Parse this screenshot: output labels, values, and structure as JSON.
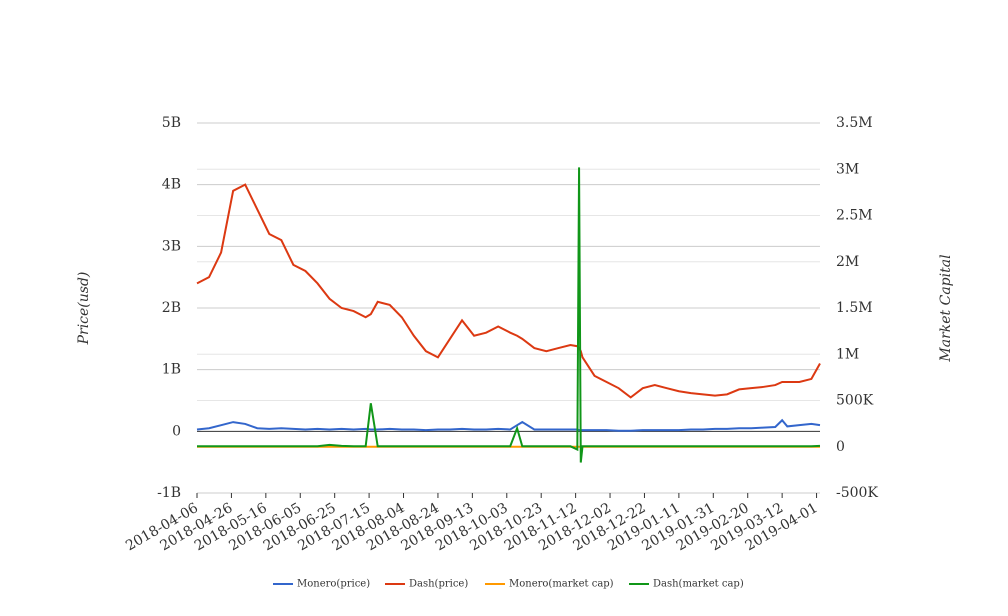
{
  "chart_data": {
    "type": "line",
    "y_label": "Price(usd)",
    "y2_label": "Market Capital",
    "x": [
      "2018-04-06",
      "2018-04-13",
      "2018-04-20",
      "2018-04-27",
      "2018-05-04",
      "2018-05-11",
      "2018-05-18",
      "2018-05-25",
      "2018-06-01",
      "2018-06-08",
      "2018-06-15",
      "2018-06-22",
      "2018-06-29",
      "2018-07-06",
      "2018-07-13",
      "2018-07-16",
      "2018-07-20",
      "2018-07-27",
      "2018-08-03",
      "2018-08-10",
      "2018-08-17",
      "2018-08-24",
      "2018-08-31",
      "2018-09-07",
      "2018-09-14",
      "2018-09-21",
      "2018-09-28",
      "2018-10-05",
      "2018-10-09",
      "2018-10-12",
      "2018-10-19",
      "2018-10-26",
      "2018-11-02",
      "2018-11-09",
      "2018-11-13",
      "2018-11-14",
      "2018-11-15",
      "2018-11-16",
      "2018-11-23",
      "2018-11-30",
      "2018-12-07",
      "2018-12-14",
      "2018-12-21",
      "2018-12-28",
      "2019-01-04",
      "2019-01-11",
      "2019-01-18",
      "2019-01-25",
      "2019-02-01",
      "2019-02-08",
      "2019-02-15",
      "2019-02-22",
      "2019-03-01",
      "2019-03-08",
      "2019-03-12",
      "2019-03-15",
      "2019-03-22",
      "2019-03-29",
      "2019-04-03"
    ],
    "xlim": [
      "2018-04-06",
      "2019-04-03"
    ],
    "xticks": [
      "2018-04-06",
      "2018-04-26",
      "2018-05-16",
      "2018-06-05",
      "2018-06-25",
      "2018-07-15",
      "2018-08-04",
      "2018-08-24",
      "2018-09-13",
      "2018-10-03",
      "2018-10-23",
      "2018-11-12",
      "2018-12-02",
      "2018-12-22",
      "2019-01-11",
      "2019-01-31",
      "2019-02-20",
      "2019-03-12",
      "2019-04-01"
    ],
    "ylim": [
      -1000000000.0,
      5000000000.0
    ],
    "yticks": [
      {
        "value": -1000000000.0,
        "label": "-1B"
      },
      0,
      {
        "value": 1000000000.0,
        "label": "1B"
      },
      {
        "value": 2000000000.0,
        "label": "2B"
      },
      {
        "value": 3000000000.0,
        "label": "3B"
      },
      {
        "value": 4000000000.0,
        "label": "4B"
      },
      {
        "value": 5000000000.0,
        "label": "5B"
      }
    ],
    "y2lim": [
      -500000,
      3500000
    ],
    "y2ticks": [
      {
        "value": -500000,
        "label": "-500K"
      },
      0,
      {
        "value": 500000,
        "label": "500K"
      },
      {
        "value": 1000000,
        "label": "1M"
      },
      {
        "value": 1500000,
        "label": "1.5M"
      },
      {
        "value": 2000000,
        "label": "2M"
      },
      {
        "value": 2500000,
        "label": "2.5M"
      },
      {
        "value": 3000000,
        "label": "3M"
      },
      {
        "value": 3500000,
        "label": "3.5M"
      }
    ],
    "grid": true,
    "legend": "bottom",
    "series": [
      {
        "name": "Monero(price)",
        "color": "#3366cc",
        "values": [
          30000000.0,
          50000000.0,
          100000000.0,
          150000000.0,
          120000000.0,
          50000000.0,
          40000000.0,
          50000000.0,
          40000000.0,
          30000000.0,
          40000000.0,
          30000000.0,
          40000000.0,
          30000000.0,
          40000000.0,
          30000000.0,
          30000000.0,
          40000000.0,
          30000000.0,
          30000000.0,
          20000000.0,
          30000000.0,
          30000000.0,
          40000000.0,
          30000000.0,
          30000000.0,
          40000000.0,
          30000000.0,
          100000000.0,
          150000000.0,
          30000000.0,
          30000000.0,
          30000000.0,
          30000000.0,
          30000000.0,
          20000000.0,
          20000000.0,
          20000000.0,
          20000000.0,
          20000000.0,
          10000000.0,
          10000000.0,
          20000000.0,
          20000000.0,
          20000000.0,
          20000000.0,
          30000000.0,
          30000000.0,
          40000000.0,
          40000000.0,
          50000000.0,
          50000000.0,
          60000000.0,
          70000000.0,
          180000000.0,
          80000000.0,
          100000000.0,
          120000000.0,
          100000000.0
        ]
      },
      {
        "name": "Dash(price)",
        "color": "#dc3912",
        "values": [
          2400000000.0,
          2500000000.0,
          2900000000.0,
          3900000000.0,
          4000000000.0,
          3600000000.0,
          3200000000.0,
          3100000000.0,
          2700000000.0,
          2600000000.0,
          2400000000.0,
          2150000000.0,
          2000000000.0,
          1950000000.0,
          1850000000.0,
          1900000000.0,
          2100000000.0,
          2050000000.0,
          1850000000.0,
          1550000000.0,
          1300000000.0,
          1200000000.0,
          1500000000.0,
          1800000000.0,
          1550000000.0,
          1600000000.0,
          1700000000.0,
          1600000000.0,
          1550000000.0,
          1500000000.0,
          1350000000.0,
          1300000000.0,
          1350000000.0,
          1400000000.0,
          1380000000.0,
          1350000000.0,
          1300000000.0,
          1200000000.0,
          900000000.0,
          800000000.0,
          700000000.0,
          550000000.0,
          700000000.0,
          750000000.0,
          700000000.0,
          650000000.0,
          620000000.0,
          600000000.0,
          580000000.0,
          600000000.0,
          680000000.0,
          700000000.0,
          720000000.0,
          750000000.0,
          800000000.0,
          800000000.0,
          800000000.0,
          850000000.0,
          1100000000.0
        ]
      },
      {
        "name": "Monero(market cap)",
        "color": "#ff9900",
        "axis": "y2",
        "values": [
          0,
          0,
          0,
          0,
          0,
          0,
          0,
          0,
          0,
          0,
          0,
          0,
          0,
          0,
          0,
          0,
          0,
          0,
          0,
          0,
          0,
          0,
          0,
          0,
          0,
          0,
          0,
          0,
          0,
          0,
          0,
          0,
          0,
          0,
          0,
          0,
          0,
          0,
          0,
          0,
          0,
          0,
          0,
          0,
          0,
          0,
          0,
          0,
          0,
          0,
          0,
          0,
          0,
          0,
          0,
          0,
          0,
          0,
          0
        ]
      },
      {
        "name": "Dash(market cap)",
        "color": "#109618",
        "axis": "y2",
        "values": [
          5000,
          5000,
          5000,
          5000,
          5000,
          5000,
          5000,
          5000,
          5000,
          5000,
          5000,
          20000,
          10000,
          5000,
          5000,
          470000,
          5000,
          5000,
          5000,
          5000,
          5000,
          5000,
          5000,
          5000,
          5000,
          5000,
          5000,
          5000,
          200000,
          5000,
          5000,
          5000,
          5000,
          5000,
          -30000,
          3020000,
          -170000,
          5000,
          5000,
          5000,
          5000,
          5000,
          5000,
          5000,
          5000,
          5000,
          5000,
          5000,
          5000,
          5000,
          5000,
          5000,
          5000,
          5000,
          5000,
          5000,
          5000,
          5000,
          10000
        ]
      }
    ]
  }
}
